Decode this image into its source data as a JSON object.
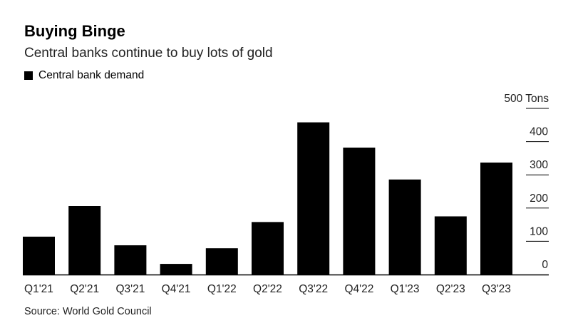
{
  "header": {
    "title": "Buying Binge",
    "subtitle": "Central banks continue to buy lots of gold"
  },
  "legend": {
    "label": "Central bank demand",
    "color": "#000000"
  },
  "footer": {
    "source": "Source: World Gold Council"
  },
  "chart_data": {
    "type": "bar",
    "categories": [
      "Q1'21",
      "Q2'21",
      "Q3'21",
      "Q4'21",
      "Q1'22",
      "Q2'22",
      "Q3'22",
      "Q4'22",
      "Q1'23",
      "Q2'23",
      "Q3'23"
    ],
    "series": [
      {
        "name": "Central bank demand",
        "values": [
          114,
          206,
          88,
          32,
          79,
          158,
          458,
          382,
          286,
          175,
          337
        ],
        "color": "#000000"
      }
    ],
    "ylim": [
      0,
      500
    ],
    "yticks": [
      0,
      100,
      200,
      300,
      400,
      500
    ],
    "ytick_labels": [
      "0",
      "100",
      "200",
      "300",
      "400",
      "500"
    ],
    "yunit": "Tons",
    "title": "Buying Binge",
    "subtitle": "Central banks continue to buy lots of gold",
    "xlabel": "",
    "ylabel": "",
    "grid": "right-side tick marks",
    "legend_position": "top-left"
  }
}
